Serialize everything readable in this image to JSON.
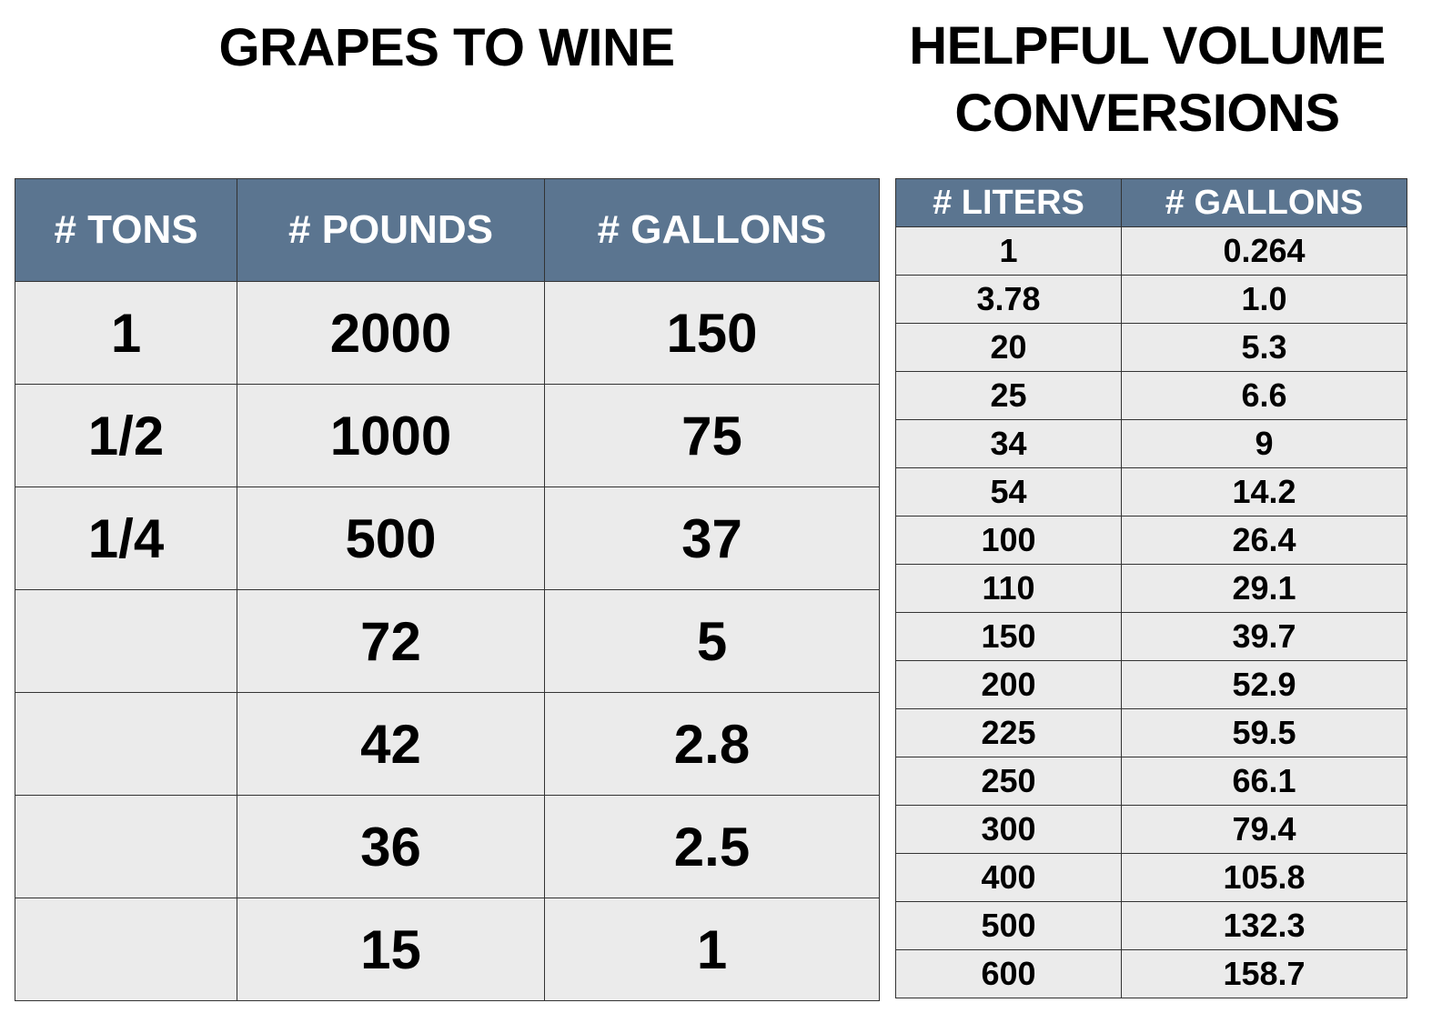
{
  "left": {
    "title": "GRAPES TO WINE",
    "table": {
      "header": [
        "# TONS",
        "# POUNDS",
        "# GALLONS"
      ],
      "rows": [
        [
          "1",
          "2000",
          "150"
        ],
        [
          "1/2",
          "1000",
          "75"
        ],
        [
          "1/4",
          "500",
          "37"
        ],
        [
          null,
          "72",
          "5"
        ],
        [
          null,
          "42",
          "2.8"
        ],
        [
          null,
          "36",
          "2.5"
        ],
        [
          null,
          "15",
          "1"
        ]
      ]
    }
  },
  "right": {
    "title_lines": [
      "HELPFUL VOLUME",
      "CONVERSIONS"
    ],
    "table": {
      "header": [
        "# LITERS",
        "# GALLONS"
      ],
      "rows": [
        [
          "1",
          "0.264"
        ],
        [
          "3.78",
          "1.0"
        ],
        [
          "20",
          "5.3"
        ],
        [
          "25",
          "6.6"
        ],
        [
          "34",
          "9"
        ],
        [
          "54",
          "14.2"
        ],
        [
          "100",
          "26.4"
        ],
        [
          "110",
          "29.1"
        ],
        [
          "150",
          "39.7"
        ],
        [
          "200",
          "52.9"
        ],
        [
          "225",
          "59.5"
        ],
        [
          "250",
          "66.1"
        ],
        [
          "300",
          "79.4"
        ],
        [
          "400",
          "105.8"
        ],
        [
          "500",
          "132.3"
        ],
        [
          "600",
          "158.7"
        ]
      ]
    }
  }
}
